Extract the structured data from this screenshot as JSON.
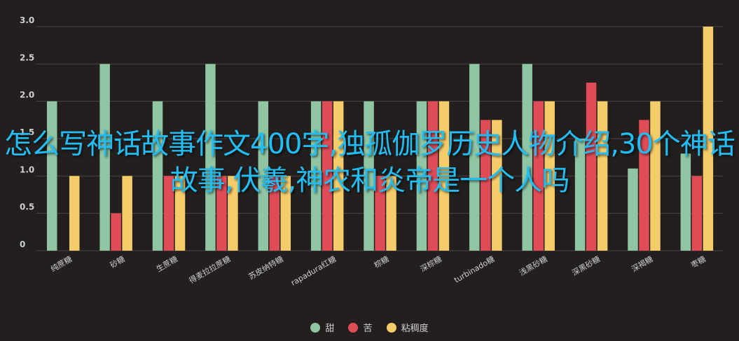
{
  "chart_data": {
    "type": "bar",
    "categories": [
      "纯蔗糖",
      "砂糖",
      "生蔗糖",
      "得麦拉拉蔗糖",
      "苏皮纳特糖",
      "rapadura红糖",
      "棕糖",
      "深棕糖",
      "turbinado糖",
      "浅黑砂糖",
      "深黑砂糖",
      "深褐糖",
      "枣糖"
    ],
    "series": [
      {
        "name": "甜",
        "color": "#8fc5a2",
        "values": [
          2,
          2.5,
          2,
          2.5,
          2,
          2,
          2,
          2,
          2.5,
          2.5,
          1.5,
          1.1,
          1.3
        ]
      },
      {
        "name": "苦",
        "color": "#df4c56",
        "values": [
          0,
          0.5,
          1,
          1,
          1,
          2,
          1,
          2,
          1.75,
          2,
          2.25,
          1.75,
          1
        ]
      },
      {
        "name": "粘稠度",
        "color": "#f4cc6a",
        "values": [
          1,
          1,
          1,
          1,
          1,
          2,
          1,
          2,
          1.75,
          2,
          2,
          2,
          3
        ]
      }
    ],
    "y_ticks": [
      "0",
      "0.5",
      "1.0",
      "1.5",
      "2.0",
      "2.5",
      "3.0"
    ],
    "ylim": [
      0,
      3
    ],
    "grid": true,
    "legend": "bottom"
  },
  "overlay_title": "怎么写神话故事作文400字,独孤伽罗历史人物介绍,30个神话故事,伏羲,神农和炎帝是一个人吗",
  "colors": {
    "background": "#231f1f",
    "grid": "#4a4646",
    "axis_text": "#cfcfcf",
    "title": "#21bdf3"
  }
}
